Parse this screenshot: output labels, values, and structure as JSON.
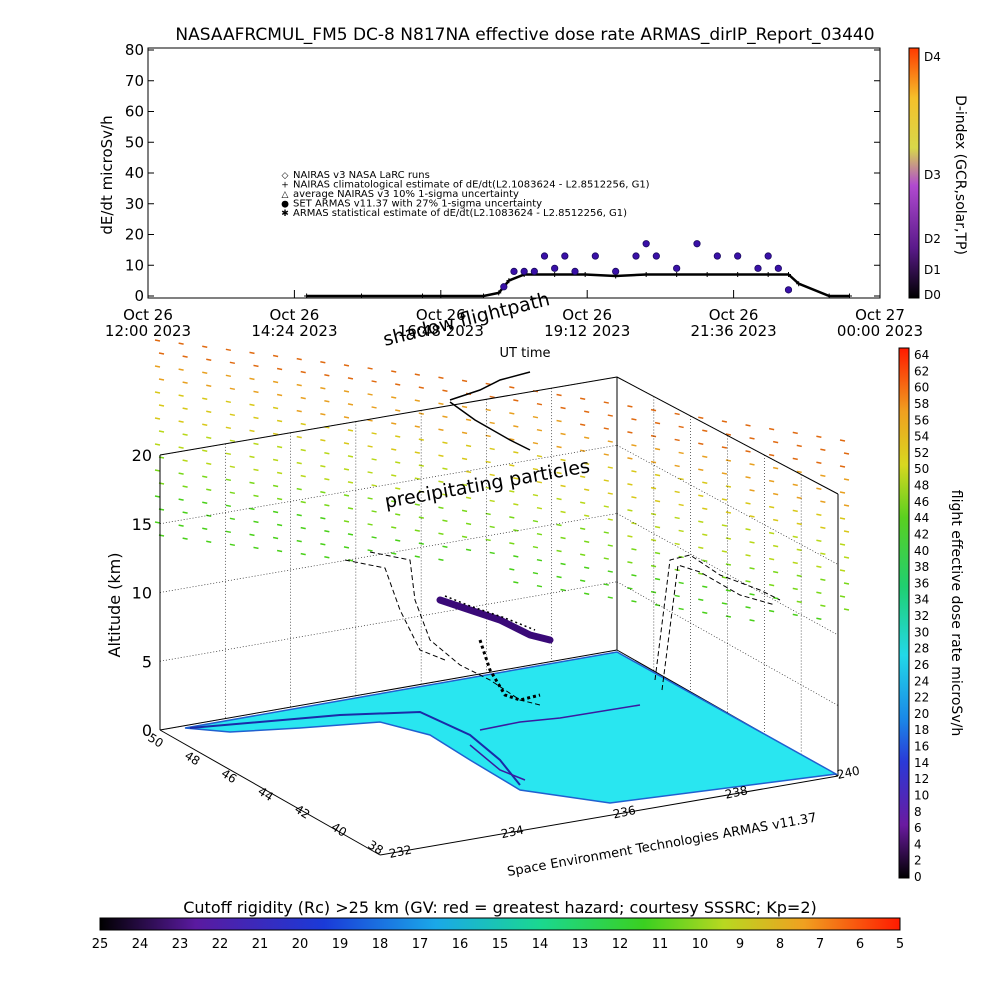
{
  "title": "NASAAFRCMUL_FM5 DC-8    N817NA effective dose rate ARMAS_dirIP_Report_03440",
  "colors": {
    "background": "#ffffff",
    "cyan_fill": "#29e6f0",
    "flightline": "#000000"
  },
  "top_panel": {
    "ylabel": "dE/dt microSv/h",
    "xlabel": "UT time",
    "right_label": "D-index (GCR,solar,TP)",
    "yticks": [
      "0",
      "10",
      "20",
      "30",
      "40",
      "50",
      "60",
      "70",
      "80"
    ],
    "xticks": [
      {
        "l1": "Oct 26",
        "l2": "12:00 2023"
      },
      {
        "l1": "Oct 26",
        "l2": "14:24 2023"
      },
      {
        "l1": "Oct 26",
        "l2": "16:48 2023"
      },
      {
        "l1": "Oct 26",
        "l2": "19:12 2023"
      },
      {
        "l1": "Oct 26",
        "l2": "21:36 2023"
      },
      {
        "l1": "Oct 27",
        "l2": "00:00 2023"
      }
    ],
    "dindex_ticks": [
      "D0",
      "D1",
      "D2",
      "D3",
      "D4"
    ],
    "legend": [
      {
        "symbol": "◇",
        "text": "NAIRAS v3 NASA LaRC runs"
      },
      {
        "symbol": "+",
        "text": "NAIRAS climatological estimate of dE/dt(L2.1083624 - L2.8512256, G1)"
      },
      {
        "symbol": "△",
        "text": "average NAIRAS v3 10% 1-sigma uncertainty"
      },
      {
        "symbol": "●",
        "text": "SET ARMAS v11.37 with 27% 1-sigma uncertainty"
      },
      {
        "symbol": "✱",
        "text": "ARMAS statistical estimate of dE/dt(L2.1083624 - L2.8512256, G1)"
      }
    ]
  },
  "chart_data": [
    {
      "type": "scatter",
      "title": "NASAAFRCMUL_FM5 DC-8    N817NA effective dose rate ARMAS_dirIP_Report_03440",
      "xlabel": "UT time",
      "ylabel": "dE/dt microSv/h",
      "xlim": [
        "2023-10-26 12:00",
        "2023-10-27 00:00"
      ],
      "ylim": [
        0,
        80
      ],
      "series": [
        {
          "name": "NAIRAS climatological estimate of dE/dt(L2.1083624 - L2.8512256, G1)",
          "x": [
            "14:36",
            "15:30",
            "16:30",
            "17:30",
            "17:45",
            "17:55",
            "18:10",
            "18:40",
            "19:10",
            "19:40",
            "20:10",
            "20:40",
            "21:10",
            "21:40",
            "22:10",
            "22:30",
            "22:40",
            "23:10",
            "23:30"
          ],
          "y": [
            0,
            0,
            0,
            0,
            1,
            5,
            7,
            7,
            7,
            6.5,
            7,
            7,
            7,
            7,
            7,
            7,
            4,
            0,
            0
          ]
        },
        {
          "name": "SET ARMAS v11.37 with 27% 1-sigma uncertainty",
          "x": [
            "17:50",
            "18:00",
            "18:10",
            "18:20",
            "18:30",
            "18:40",
            "18:50",
            "19:00",
            "19:20",
            "19:40",
            "20:00",
            "20:10",
            "20:20",
            "20:40",
            "21:00",
            "21:20",
            "21:40",
            "22:00",
            "22:10",
            "22:20",
            "22:30"
          ],
          "y": [
            3,
            8,
            8,
            8,
            13,
            9,
            13,
            8,
            13,
            8,
            13,
            17,
            13,
            9,
            17,
            13,
            13,
            9,
            13,
            9,
            2
          ]
        }
      ],
      "colorbar": {
        "label": "D-index (GCR,solar,TP)",
        "ticks": [
          "D0",
          "D1",
          "D2",
          "D3",
          "D4"
        ]
      }
    },
    {
      "type": "heatmap",
      "title": "shadow flightpath",
      "annotations": [
        "precipitating particles",
        "shadow flightpath"
      ],
      "xlabel": "",
      "ylabel": "Altitude (km)",
      "zlim": [
        0,
        20
      ],
      "zticks": [
        "0",
        "5",
        "10",
        "15",
        "20"
      ],
      "lat_ticks": [
        "50",
        "48",
        "46",
        "44",
        "42",
        "40",
        "38"
      ],
      "lon_ticks": [
        "232",
        "234",
        "236",
        "238",
        "240"
      ],
      "credit": "Space Environment Technologies ARMAS v11.37",
      "colorbar": {
        "label": "flight effective dose rate microSv/h",
        "ticks": [
          "0",
          "2",
          "4",
          "6",
          "8",
          "10",
          "12",
          "14",
          "16",
          "18",
          "20",
          "22",
          "24",
          "26",
          "28",
          "30",
          "32",
          "34",
          "36",
          "38",
          "40",
          "42",
          "44",
          "46",
          "48",
          "50",
          "52",
          "54",
          "56",
          "58",
          "60",
          "62",
          "64"
        ]
      }
    }
  ],
  "bottom_bar": {
    "label": "Cutoff rigidity (Rc) >25 km (GV: red = greatest hazard; courtesy SSSRC; Kp=2)",
    "ticks": [
      "25",
      "24",
      "23",
      "22",
      "21",
      "20",
      "19",
      "18",
      "17",
      "16",
      "15",
      "14",
      "13",
      "12",
      "11",
      "10",
      "9",
      "8",
      "7",
      "6",
      "5"
    ]
  }
}
